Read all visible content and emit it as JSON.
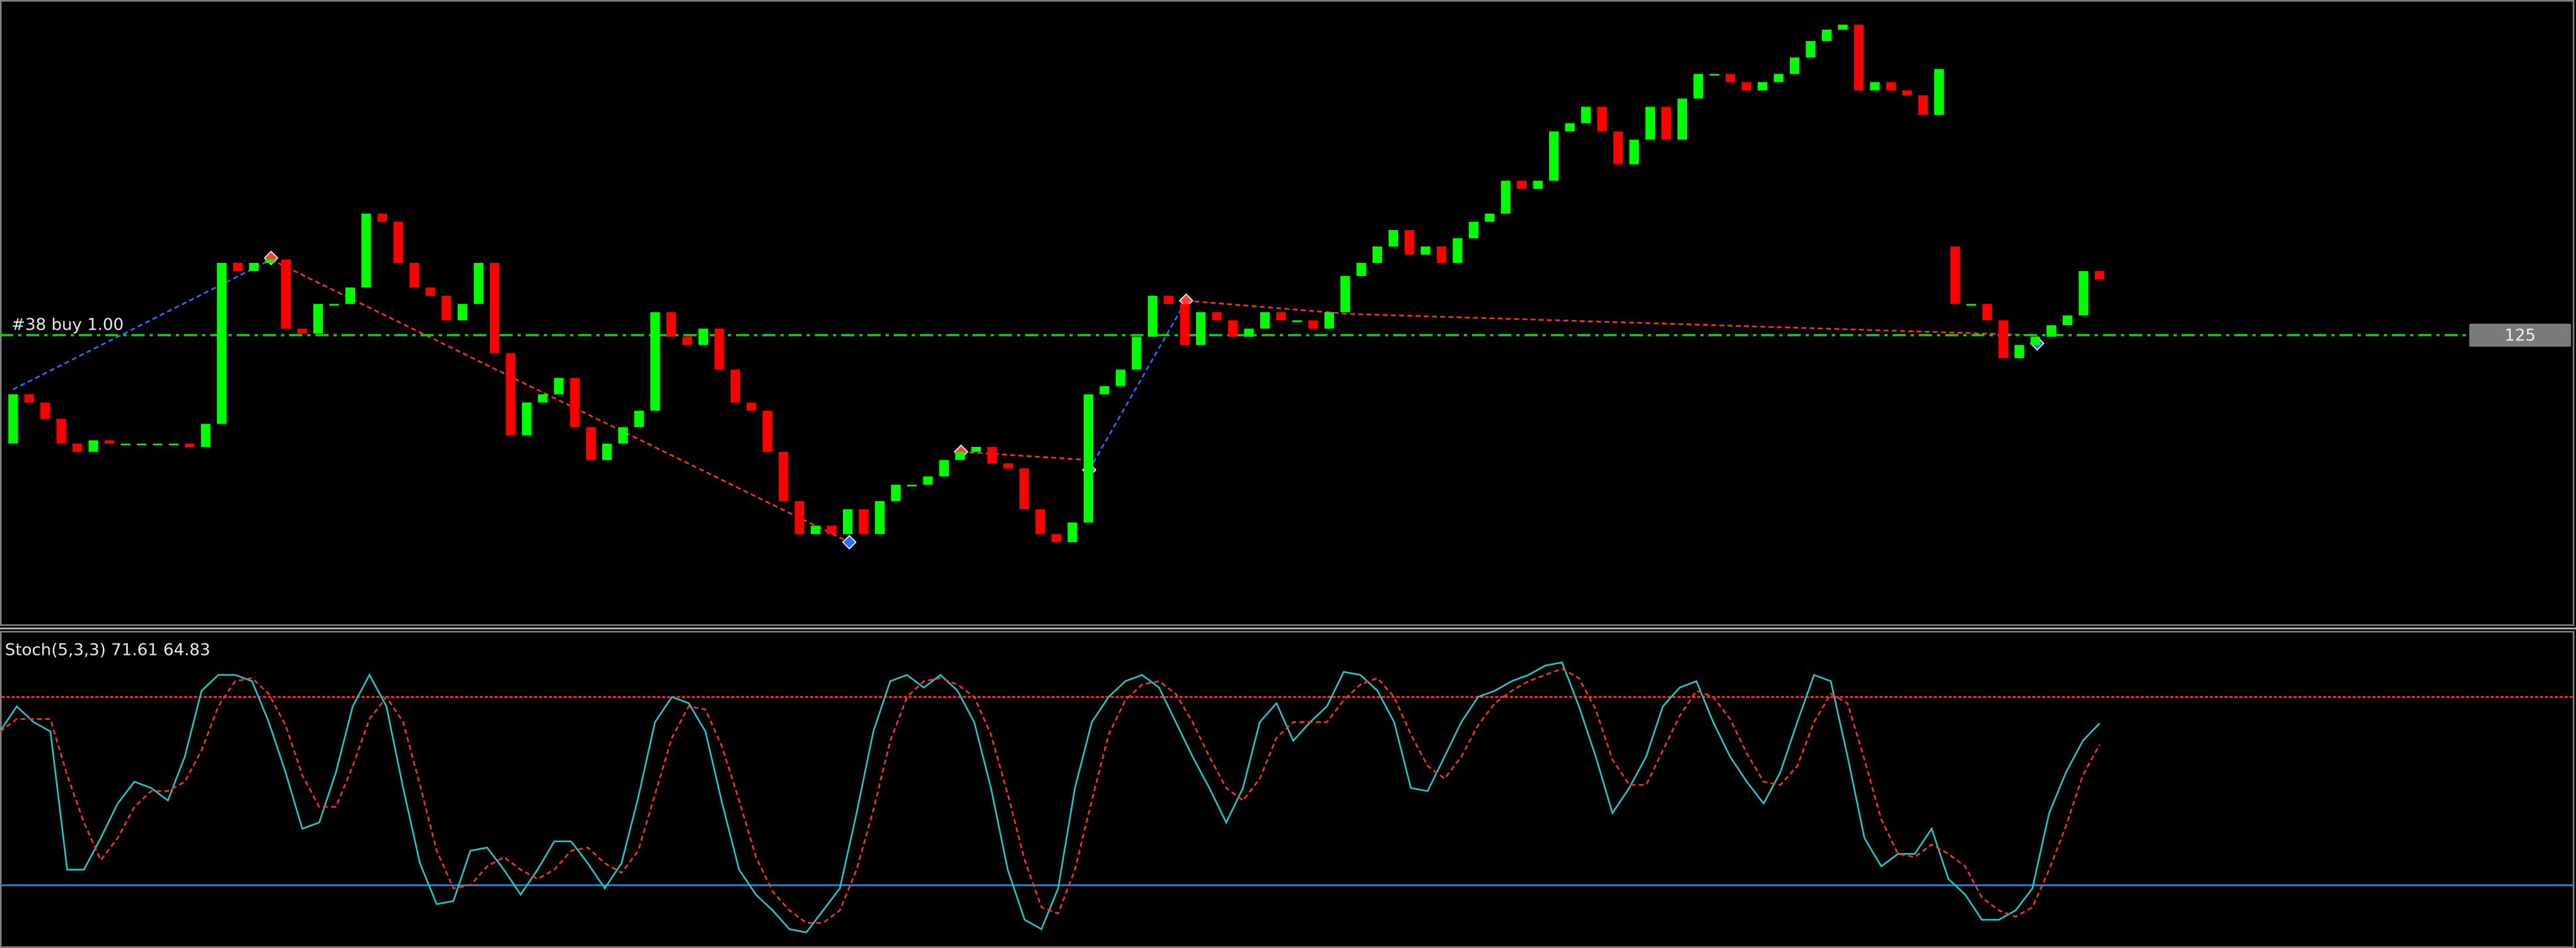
{
  "chart_data": [
    {
      "type": "candlestick",
      "open": [
        118.4,
        121.4,
        120.9,
        119.9,
        118.4,
        117.9,
        118.6,
        118.4,
        118.4,
        118.4,
        118.4,
        118.4,
        118.2,
        119.6,
        129.4,
        128.9,
        129.4,
        129.6,
        125.4,
        125.1,
        126.9,
        126.9,
        127.9,
        132.4,
        131.9,
        129.4,
        127.9,
        127.4,
        125.9,
        126.9,
        129.4,
        123.9,
        118.9,
        120.9,
        121.4,
        122.4,
        119.4,
        117.4,
        118.4,
        119.4,
        120.4,
        126.4,
        124.9,
        124.4,
        125.4,
        122.9,
        120.9,
        120.4,
        117.9,
        114.9,
        112.9,
        113.4,
        112.9,
        114.4,
        112.9,
        114.9,
        115.9,
        115.9,
        116.4,
        117.4,
        117.9,
        118.2,
        117.2,
        116.9,
        114.4,
        112.9,
        112.4,
        113.6,
        121.4,
        121.9,
        122.9,
        124.9,
        127.4,
        126.9,
        124.4,
        126.4,
        125.9,
        124.9,
        125.4,
        126.4,
        125.9,
        125.9,
        125.4,
        126.4,
        128.6,
        129.4,
        130.4,
        131.4,
        129.9,
        130.4,
        129.4,
        130.9,
        131.9,
        132.4,
        134.4,
        133.9,
        134.4,
        137.4,
        137.9,
        138.9,
        137.4,
        135.4,
        136.9,
        138.9,
        136.9,
        139.4,
        140.9,
        140.9,
        140.4,
        139.9,
        140.4,
        140.9,
        141.9,
        142.9,
        143.6,
        143.9,
        139.9,
        140.4,
        139.9,
        139.6,
        138.4,
        130.4,
        126.9,
        126.9,
        125.9,
        123.6,
        124.4,
        124.9,
        125.6,
        126.2,
        128.9
      ],
      "close": [
        121.4,
        120.9,
        119.9,
        118.4,
        117.9,
        118.6,
        118.4,
        118.4,
        118.4,
        118.4,
        118.4,
        118.2,
        119.6,
        129.4,
        128.9,
        129.4,
        129.6,
        125.4,
        125.1,
        126.9,
        126.9,
        127.9,
        132.4,
        131.9,
        129.4,
        127.9,
        127.4,
        125.9,
        126.9,
        129.4,
        123.9,
        118.9,
        120.9,
        121.4,
        122.4,
        119.4,
        117.4,
        118.4,
        119.4,
        120.4,
        126.4,
        124.9,
        124.4,
        125.4,
        122.9,
        120.9,
        120.4,
        117.9,
        114.9,
        112.9,
        113.4,
        112.9,
        114.4,
        112.9,
        114.9,
        115.9,
        115.9,
        116.4,
        117.4,
        117.9,
        118.2,
        117.2,
        116.9,
        114.4,
        112.9,
        112.4,
        113.6,
        121.4,
        121.9,
        122.9,
        124.9,
        127.4,
        126.9,
        124.4,
        126.4,
        125.9,
        124.9,
        125.4,
        126.4,
        125.9,
        125.9,
        125.4,
        126.4,
        128.6,
        129.4,
        130.4,
        131.4,
        129.9,
        130.4,
        129.4,
        130.9,
        131.9,
        132.4,
        134.4,
        133.9,
        134.4,
        137.4,
        137.9,
        138.9,
        137.4,
        135.4,
        136.9,
        138.9,
        136.9,
        139.4,
        140.9,
        140.9,
        140.4,
        139.9,
        140.4,
        140.9,
        141.9,
        142.9,
        143.6,
        143.9,
        139.9,
        140.4,
        139.9,
        139.6,
        138.4,
        141.2,
        126.9,
        126.9,
        125.9,
        123.6,
        124.4,
        124.9,
        125.6,
        126.2,
        128.9,
        128.4
      ],
      "up_color": "#00ff00",
      "down_color": "#ff0000",
      "ylim": [
        107.3,
        145.4
      ],
      "hlines": [
        {
          "value": 125,
          "text": "#38 buy 1.00",
          "color": "#22c022"
        }
      ]
    },
    {
      "type": "line",
      "title": "Stoch(5,3,3) 71.61 64.83",
      "series": [
        {
          "color": "#20c8c8",
          "values": [
            69,
            77,
            72,
            69,
            25,
            25,
            35,
            46,
            53,
            51,
            47,
            61,
            82,
            87,
            87,
            85,
            72,
            56,
            38,
            40,
            56,
            77,
            87,
            77,
            51,
            27,
            14,
            15,
            31,
            32,
            25,
            17,
            25,
            34,
            34,
            27,
            19,
            27,
            48,
            72,
            80,
            78,
            69,
            46,
            25,
            17,
            12,
            6,
            5,
            12,
            19,
            43,
            69,
            85,
            87,
            83,
            87,
            82,
            72,
            51,
            25,
            9,
            6,
            19,
            51,
            72,
            80,
            85,
            87,
            83,
            72,
            61,
            51,
            40,
            51,
            72,
            78,
            66,
            72,
            77,
            88,
            87,
            82,
            72,
            51,
            50,
            61,
            72,
            80,
            82,
            85,
            87,
            90,
            91,
            77,
            61,
            43,
            51,
            61,
            77,
            83,
            85,
            72,
            61,
            53,
            46,
            56,
            72,
            87,
            85,
            61,
            35,
            26,
            30,
            30,
            38,
            22,
            17,
            9,
            9,
            12,
            19,
            43,
            56,
            66,
            71.61
          ]
        },
        {
          "color": "#ff3030",
          "dashed": true,
          "values": [
            69,
            73,
            73,
            73,
            55,
            40,
            28,
            35,
            45,
            50,
            50,
            53,
            63,
            77,
            85,
            86,
            81,
            71,
            55,
            45,
            45,
            58,
            73,
            80,
            72,
            52,
            31,
            19,
            20,
            26,
            29,
            25,
            22,
            25,
            31,
            32,
            27,
            24,
            31,
            49,
            67,
            77,
            76,
            64,
            47,
            29,
            18,
            12,
            8,
            8,
            12,
            25,
            44,
            66,
            80,
            85,
            86,
            84,
            80,
            68,
            49,
            28,
            13,
            11,
            25,
            47,
            68,
            79,
            84,
            85,
            81,
            72,
            61,
            51,
            47,
            54,
            67,
            72,
            72,
            72,
            79,
            84,
            86,
            80,
            68,
            58,
            54,
            61,
            71,
            78,
            82,
            85,
            87,
            89,
            86,
            76,
            60,
            52,
            52,
            63,
            74,
            82,
            80,
            73,
            62,
            53,
            52,
            58,
            72,
            81,
            78,
            60,
            41,
            30,
            29,
            33,
            30,
            26,
            16,
            12,
            10,
            13,
            25,
            39,
            55,
            64.83
          ]
        }
      ],
      "levels": [
        {
          "value": 80,
          "color": "#ff3030"
        },
        {
          "value": 20,
          "color": "#1e90ff"
        }
      ],
      "ylim": [
        0,
        100
      ]
    }
  ]
}
